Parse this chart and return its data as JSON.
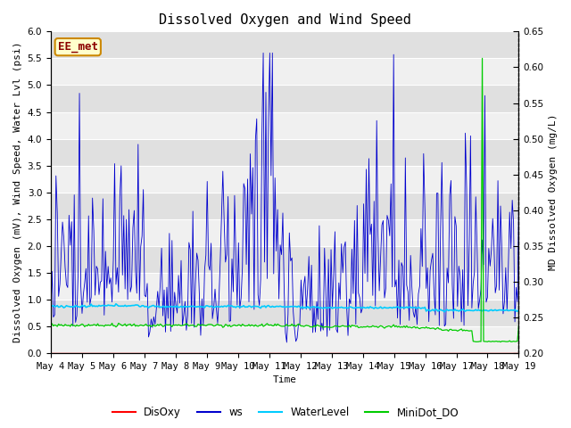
{
  "title": "Dissolved Oxygen and Wind Speed",
  "ylabel_left": "Dissolved Oxygen (mV), Wind Speed, Water Lvl (psi)",
  "ylabel_right": "MD Dissolved Oxygen (mg/L)",
  "xlabel": "Time",
  "annotation": "EE_met",
  "ylim_left": [
    0.0,
    6.0
  ],
  "ylim_right": [
    0.2,
    0.65
  ],
  "colors": {
    "DisOxy": "#ff0000",
    "ws": "#0000cd",
    "WaterLevel": "#00ccff",
    "MiniDot_DO": "#00cc00",
    "plot_bg_light": "#f0f0f0",
    "plot_bg_dark": "#e0e0e0",
    "grid_line": "#ffffff"
  },
  "x_tick_labels": [
    "May 4",
    "May 5",
    "May 6",
    "May 7",
    "May 8",
    "May 9",
    "May 10",
    "May 11",
    "May 12",
    "May 13",
    "May 14",
    "May 15",
    "May 16",
    "May 17",
    "May 18",
    "May 19"
  ],
  "yticks_left": [
    0.0,
    0.5,
    1.0,
    1.5,
    2.0,
    2.5,
    3.0,
    3.5,
    4.0,
    4.5,
    5.0,
    5.5,
    6.0
  ],
  "yticks_right": [
    0.2,
    0.25,
    0.3,
    0.35,
    0.4,
    0.45,
    0.5,
    0.55,
    0.6,
    0.65
  ],
  "title_fontsize": 11,
  "axis_fontsize": 8,
  "tick_fontsize": 7.5,
  "legend_fontsize": 8.5
}
